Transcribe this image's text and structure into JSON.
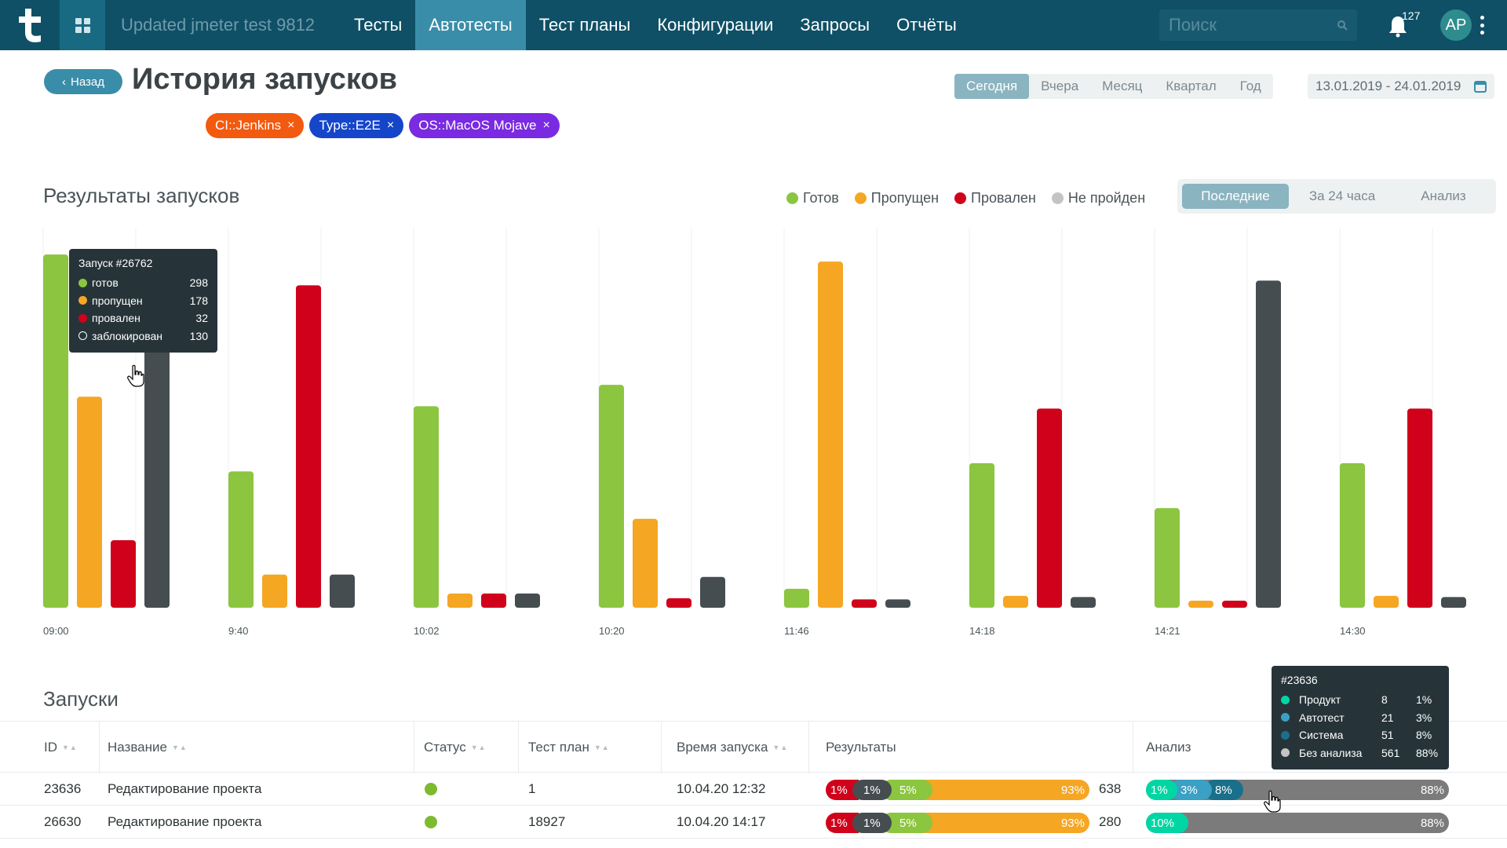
{
  "nav": {
    "project": "Updated jmeter test 9812",
    "items": [
      "Тесты",
      "Автотесты",
      "Тест планы",
      "Конфигурации",
      "Запросы",
      "Отчёты"
    ],
    "active_index": 1,
    "search_placeholder": "Поиск",
    "notifications": "127",
    "avatar": "AP"
  },
  "header": {
    "back": "Назад",
    "title": "История запусков",
    "periods": [
      "Сегодня",
      "Вчера",
      "Месяц",
      "Квартал",
      "Год"
    ],
    "active_period": 0,
    "date_range": "13.01.2019 - 24.01.2019",
    "tags": [
      {
        "label": "CI::Jenkins",
        "color": "#f25a0f"
      },
      {
        "label": "Type::E2E",
        "color": "#1546c9"
      },
      {
        "label": "OS::MacOS Mojave",
        "color": "#7a2ae0"
      }
    ]
  },
  "chart_section": {
    "title": "Результаты запусков",
    "tabs": [
      "Последние",
      "За 24 часа",
      "Анализ"
    ],
    "active_tab": 0
  },
  "colors": {
    "ready": "#8cc53f",
    "skipped": "#f5a623",
    "failed": "#d0021b",
    "not_passed": "#464d50",
    "analysis_product": "#00d6a4",
    "analysis_autotest": "#3aa0c4",
    "analysis_system": "#1a6f8a",
    "analysis_none": "#7b7b7b"
  },
  "chart_data": {
    "type": "bar",
    "categories": [
      "09:00",
      "9:40",
      "10:02",
      "10:20",
      "11:46",
      "14:18",
      "14:21",
      "14:30"
    ],
    "series": [
      {
        "name": "Готов",
        "values": [
          298,
          115,
          170,
          188,
          16,
          122,
          84,
          122
        ]
      },
      {
        "name": "Пропущен",
        "values": [
          178,
          28,
          12,
          75,
          292,
          10,
          6,
          10
        ]
      },
      {
        "name": "Провален",
        "values": [
          57,
          272,
          12,
          8,
          7,
          168,
          6,
          168
        ]
      },
      {
        "name": "Не пройден",
        "values": [
          230,
          28,
          12,
          26,
          7,
          9,
          276,
          9
        ]
      }
    ],
    "ylim": [
      0,
      310
    ],
    "grid": "vertical"
  },
  "tooltip_chart": {
    "title": "Запуск #26762",
    "rows": [
      {
        "label": "готов",
        "value": "298"
      },
      {
        "label": "пропущен",
        "value": "178"
      },
      {
        "label": "провален",
        "value": "32"
      },
      {
        "label": "заблокирован",
        "value": "130"
      }
    ]
  },
  "runs_section": {
    "title": "Запуски",
    "columns": [
      "ID",
      "Название",
      "Статус",
      "Тест план",
      "Время запуска",
      "Результаты",
      "Анализ"
    ],
    "rows": [
      {
        "id": "23636",
        "name": "Редактирование проекта",
        "plan": "1",
        "time": "10.04.20  12:32",
        "results": [
          "1%",
          "1%",
          "5%",
          "93%"
        ],
        "results_count": "638",
        "analysis": [
          {
            "label": "1%",
            "value": 1
          },
          {
            "label": "3%",
            "value": 3
          },
          {
            "label": "8%",
            "value": 8
          },
          {
            "label": "88%",
            "value": 88
          }
        ]
      },
      {
        "id": "26630",
        "name": "Редактирование проекта",
        "plan": "18927",
        "time": "10.04.20  14:17",
        "results": [
          "1%",
          "1%",
          "5%",
          "93%"
        ],
        "results_count": "280",
        "analysis": [
          {
            "label": "10%",
            "value": 10
          },
          {
            "label": "88%",
            "value": 88
          }
        ]
      }
    ]
  },
  "tooltip_analysis": {
    "title": "#23636",
    "rows": [
      {
        "label": "Продукт",
        "count": "8",
        "pct": "1%"
      },
      {
        "label": "Автотест",
        "count": "21",
        "pct": "3%"
      },
      {
        "label": "Система",
        "count": "51",
        "pct": "8%"
      },
      {
        "label": "Без анализа",
        "count": "561",
        "pct": "88%"
      }
    ]
  }
}
